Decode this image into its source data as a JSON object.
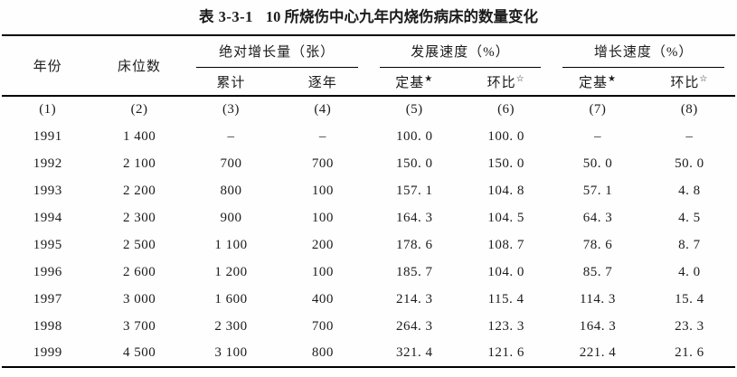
{
  "title": {
    "tag": "表 3-3-1",
    "text": "10 所烧伤中心九年内烧伤病床的数量变化"
  },
  "table": {
    "headers": {
      "year": "年份",
      "beds": "床位数"
    },
    "groups": [
      "绝对增长量（张）",
      "发展速度（%）",
      "增长速度（%）"
    ],
    "sub_headers": [
      {
        "text": "累计",
        "sup": ""
      },
      {
        "text": "逐年",
        "sup": ""
      },
      {
        "text": "定基",
        "sup": "★"
      },
      {
        "text": "环比",
        "sup": "☆"
      },
      {
        "text": "定基",
        "sup": "★"
      },
      {
        "text": "环比",
        "sup": "☆"
      }
    ],
    "col_numbers": [
      "(1)",
      "(2)",
      "(3)",
      "(4)",
      "(5)",
      "(6)",
      "(7)",
      "(8)"
    ],
    "rows": [
      [
        "1991",
        "1 400",
        "–",
        "–",
        "100. 0",
        "100. 0",
        "–",
        "–"
      ],
      [
        "1992",
        "2 100",
        "700",
        "700",
        "150. 0",
        "150. 0",
        "50. 0",
        "50. 0"
      ],
      [
        "1993",
        "2 200",
        "800",
        "100",
        "157. 1",
        "104. 8",
        "57. 1",
        "4. 8"
      ],
      [
        "1994",
        "2 300",
        "900",
        "100",
        "164. 3",
        "104. 5",
        "64. 3",
        "4. 5"
      ],
      [
        "1995",
        "2 500",
        "1 100",
        "200",
        "178. 6",
        "108. 7",
        "78. 6",
        "8. 7"
      ],
      [
        "1996",
        "2 600",
        "1 200",
        "100",
        "185. 7",
        "104. 0",
        "85. 7",
        "4. 0"
      ],
      [
        "1997",
        "3 000",
        "1 600",
        "400",
        "214. 3",
        "115. 4",
        "114. 3",
        "15. 4"
      ],
      [
        "1998",
        "3 700",
        "2 300",
        "700",
        "264. 3",
        "123. 3",
        "164. 3",
        "23. 3"
      ],
      [
        "1999",
        "4 500",
        "3 100",
        "800",
        "321. 4",
        "121. 6",
        "221. 4",
        "21. 6"
      ]
    ]
  },
  "chart_data": {
    "type": "table",
    "title": "表 3-3-1 10 所烧伤中心九年内烧伤病床的数量变化",
    "columns": [
      "年份",
      "床位数",
      "绝对增长量（张）累计",
      "绝对增长量（张）逐年",
      "发展速度（%）定基★",
      "发展速度（%）环比☆",
      "增长速度（%）定基★",
      "增长速度（%）环比☆"
    ],
    "rows": [
      [
        1991,
        1400,
        null,
        null,
        100.0,
        100.0,
        null,
        null
      ],
      [
        1992,
        2100,
        700,
        700,
        150.0,
        150.0,
        50.0,
        50.0
      ],
      [
        1993,
        2200,
        800,
        100,
        157.1,
        104.8,
        57.1,
        4.8
      ],
      [
        1994,
        2300,
        900,
        100,
        164.3,
        104.5,
        64.3,
        4.5
      ],
      [
        1995,
        2500,
        1100,
        200,
        178.6,
        108.7,
        78.6,
        8.7
      ],
      [
        1996,
        2600,
        1200,
        100,
        185.7,
        104.0,
        85.7,
        4.0
      ],
      [
        1997,
        3000,
        1600,
        400,
        214.3,
        115.4,
        114.3,
        15.4
      ],
      [
        1998,
        3700,
        2300,
        700,
        264.3,
        123.3,
        164.3,
        23.3
      ],
      [
        1999,
        4500,
        3100,
        800,
        321.4,
        121.6,
        221.4,
        21.6
      ]
    ]
  }
}
